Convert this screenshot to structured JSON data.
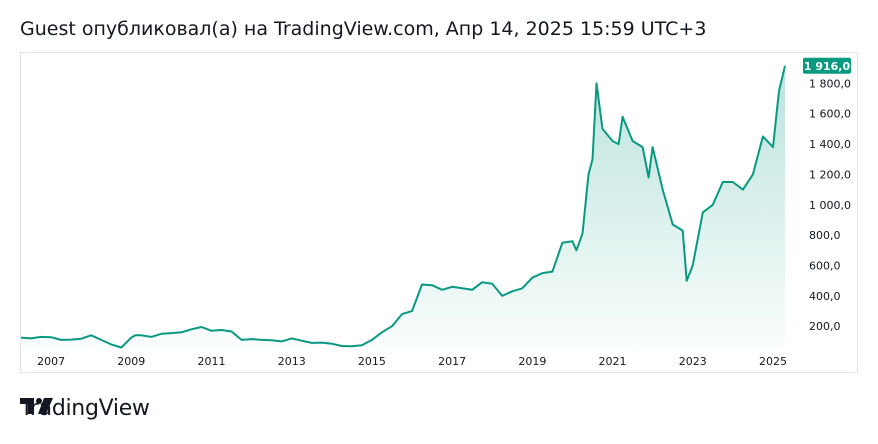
{
  "header": {
    "title": "Guest опубликовал(а) на TradingView.com, Апр 14, 2025 15:59 UTC+3"
  },
  "brand": {
    "name": "TradingView"
  },
  "colors": {
    "line": "#089981",
    "fill_top": "#089981",
    "label_bg": "#089981",
    "border": "#e0e3eb"
  },
  "chart_data": {
    "type": "area",
    "title": "",
    "xlabel": "",
    "ylabel": "",
    "xlim": [
      2006.25,
      2025.45
    ],
    "ylim": [
      50,
      2000
    ],
    "y_ticks": [
      200,
      400,
      600,
      800,
      1000,
      1200,
      1400,
      1600,
      1800
    ],
    "y_tick_labels": [
      "200,0",
      "400,0",
      "600,0",
      "800,0",
      "1 000,0",
      "1 200,0",
      "1 400,0",
      "1 600,0",
      "1 800,0"
    ],
    "x_ticks": [
      2007,
      2009,
      2011,
      2013,
      2015,
      2017,
      2019,
      2021,
      2023,
      2025
    ],
    "x_tick_labels": [
      "2007",
      "2009",
      "2011",
      "2013",
      "2015",
      "2017",
      "2019",
      "2021",
      "2023",
      "2025"
    ],
    "last_value": 1916,
    "last_value_label": "1 916,0",
    "series": [
      {
        "name": "price",
        "x": [
          2006.25,
          2006.5,
          2006.75,
          2007.0,
          2007.25,
          2007.5,
          2007.75,
          2008.0,
          2008.25,
          2008.5,
          2008.75,
          2009.0,
          2009.1,
          2009.25,
          2009.5,
          2009.75,
          2010.0,
          2010.25,
          2010.5,
          2010.75,
          2011.0,
          2011.25,
          2011.5,
          2011.75,
          2012.0,
          2012.25,
          2012.5,
          2012.75,
          2013.0,
          2013.25,
          2013.5,
          2013.75,
          2014.0,
          2014.25,
          2014.5,
          2014.75,
          2015.0,
          2015.25,
          2015.5,
          2015.75,
          2016.0,
          2016.25,
          2016.5,
          2016.75,
          2017.0,
          2017.25,
          2017.5,
          2017.75,
          2018.0,
          2018.25,
          2018.5,
          2018.75,
          2019.0,
          2019.25,
          2019.5,
          2019.75,
          2020.0,
          2020.1,
          2020.25,
          2020.4,
          2020.5,
          2020.6,
          2020.75,
          2021.0,
          2021.15,
          2021.25,
          2021.5,
          2021.75,
          2021.9,
          2022.0,
          2022.25,
          2022.5,
          2022.75,
          2022.85,
          2023.0,
          2023.25,
          2023.5,
          2023.75,
          2024.0,
          2024.25,
          2024.5,
          2024.75,
          2025.0,
          2025.15,
          2025.3
        ],
        "values": [
          125,
          120,
          130,
          128,
          110,
          112,
          118,
          140,
          110,
          80,
          60,
          125,
          140,
          140,
          130,
          150,
          155,
          160,
          180,
          195,
          170,
          175,
          165,
          110,
          115,
          110,
          108,
          100,
          120,
          105,
          90,
          92,
          85,
          70,
          68,
          75,
          110,
          160,
          200,
          280,
          300,
          475,
          470,
          440,
          460,
          450,
          440,
          490,
          480,
          400,
          430,
          450,
          520,
          550,
          560,
          750,
          760,
          700,
          810,
          1200,
          1300,
          1800,
          1500,
          1420,
          1400,
          1580,
          1420,
          1380,
          1180,
          1380,
          1100,
          870,
          830,
          500,
          600,
          950,
          1000,
          1150,
          1150,
          1100,
          1200,
          1450,
          1380,
          1750,
          1916
        ]
      }
    ]
  }
}
